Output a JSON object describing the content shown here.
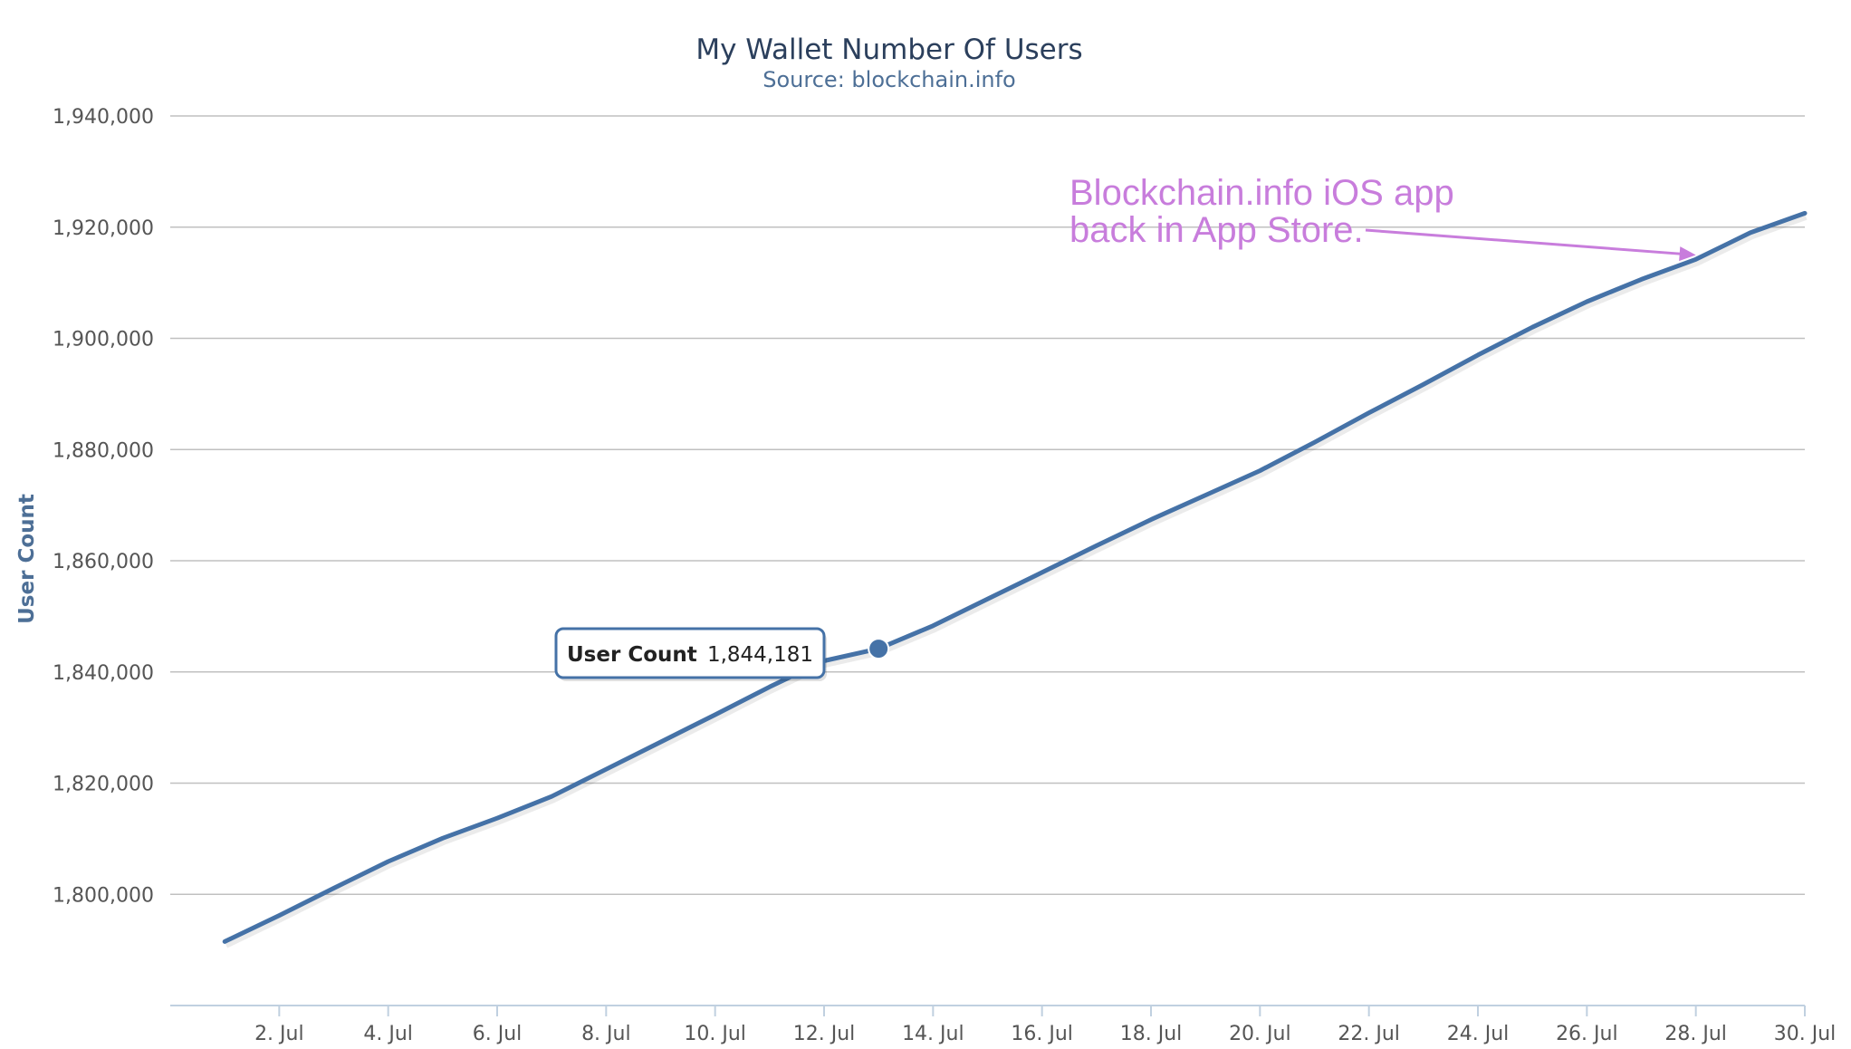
{
  "chart_data": {
    "type": "line",
    "title": "My Wallet Number Of Users",
    "subtitle": "Source: blockchain.info",
    "ylabel": "User Count",
    "xlabel": "",
    "ylim": [
      1780000,
      1940000
    ],
    "yticks": [
      1800000,
      1820000,
      1840000,
      1860000,
      1880000,
      1900000,
      1920000,
      1940000
    ],
    "ytick_labels": [
      "1,800,000",
      "1,820,000",
      "1,840,000",
      "1,860,000",
      "1,880,000",
      "1,900,000",
      "1,920,000",
      "1,940,000"
    ],
    "xlim": [
      "2014-06-30",
      "2014-07-30"
    ],
    "xticks": [
      "2014-07-02",
      "2014-07-04",
      "2014-07-06",
      "2014-07-08",
      "2014-07-10",
      "2014-07-12",
      "2014-07-14",
      "2014-07-16",
      "2014-07-18",
      "2014-07-20",
      "2014-07-22",
      "2014-07-24",
      "2014-07-26",
      "2014-07-28",
      "2014-07-30"
    ],
    "xtick_labels": [
      "2. Jul",
      "4. Jul",
      "6. Jul",
      "8. Jul",
      "10. Jul",
      "12. Jul",
      "14. Jul",
      "16. Jul",
      "18. Jul",
      "20. Jul",
      "22. Jul",
      "24. Jul",
      "26. Jul",
      "28. Jul",
      "30. Jul"
    ],
    "grid": true,
    "legend": "none",
    "line_color": "#4572a7",
    "series": [
      {
        "x": [
          "2014-07-01",
          "2014-07-02",
          "2014-07-03",
          "2014-07-04",
          "2014-07-05",
          "2014-07-06",
          "2014-07-07",
          "2014-07-08",
          "2014-07-09",
          "2014-07-10",
          "2014-07-11",
          "2014-07-12",
          "2014-07-13",
          "2014-07-14",
          "2014-07-15",
          "2014-07-16",
          "2014-07-17",
          "2014-07-18",
          "2014-07-19",
          "2014-07-20",
          "2014-07-21",
          "2014-07-22",
          "2014-07-23",
          "2014-07-24",
          "2014-07-25",
          "2014-07-26",
          "2014-07-27",
          "2014-07-28",
          "2014-07-29",
          "2014-07-30"
        ],
        "values": [
          1791500,
          1796200,
          1801100,
          1805900,
          1810100,
          1813700,
          1817600,
          1822500,
          1827400,
          1832300,
          1837300,
          1842000,
          1844181,
          1848300,
          1853100,
          1857900,
          1862700,
          1867400,
          1871800,
          1876200,
          1881300,
          1886600,
          1891700,
          1897000,
          1902000,
          1906600,
          1910600,
          1914200,
          1919000,
          1922500
        ]
      }
    ],
    "tooltip": {
      "label": "User Count",
      "value": "1,844,181",
      "x": "2014-07-13",
      "y": 1844181
    },
    "annotation": {
      "lines": [
        "Blockchain.info iOS app",
        "back in App Store."
      ],
      "color": "#c87ddc",
      "target_x": "2014-07-28",
      "target_y": 1915000
    }
  }
}
